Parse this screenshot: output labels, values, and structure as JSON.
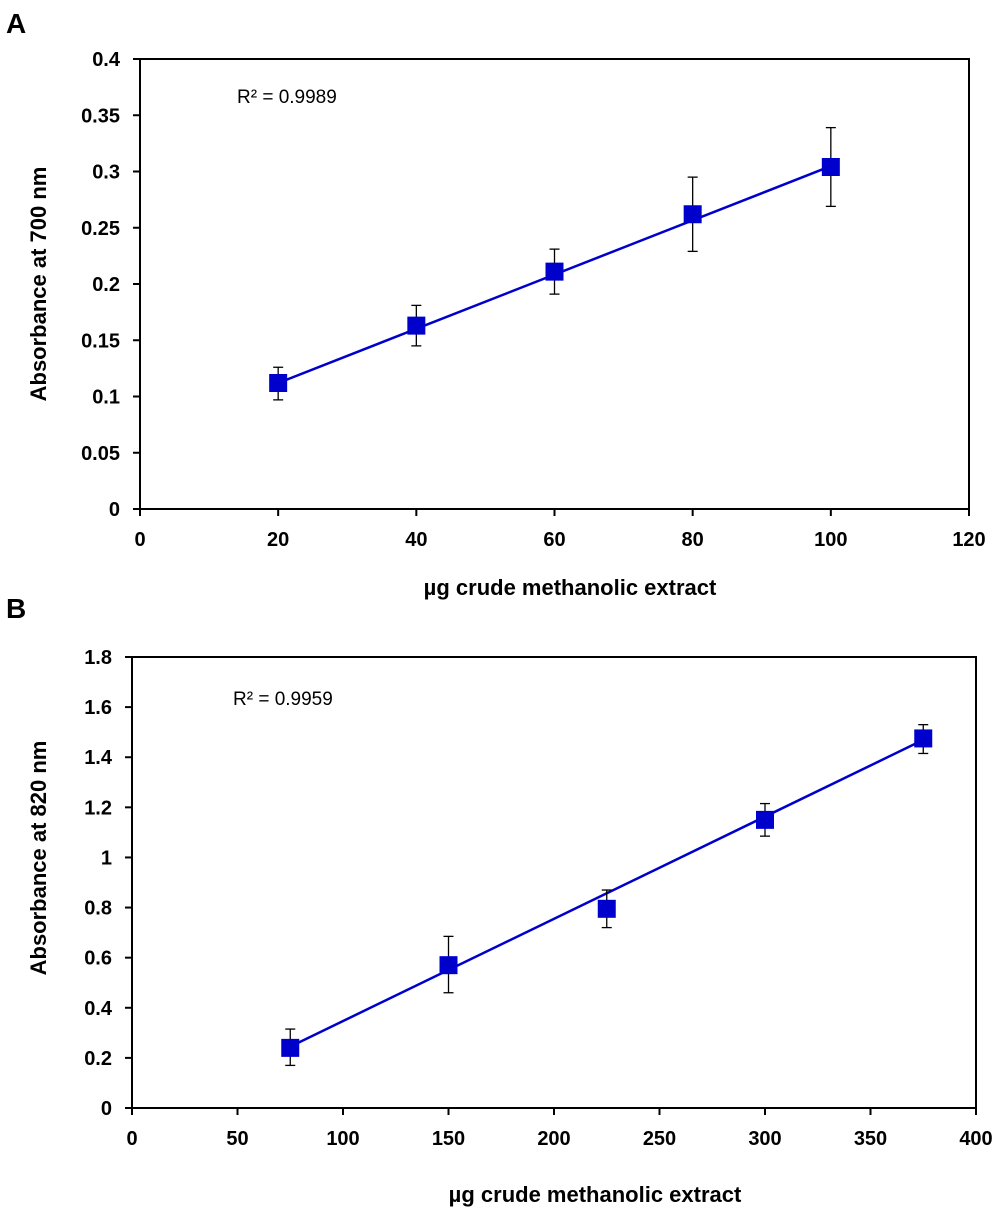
{
  "chart_data": [
    {
      "type": "scatter",
      "panel_label": "A",
      "xlabel": "µg crude methanolic extract",
      "ylabel": "Absorbance at 700 nm",
      "annotation": "R² = 0.9989",
      "xlim": [
        0,
        120
      ],
      "ylim": [
        0,
        0.4
      ],
      "x_ticks": [
        0,
        20,
        40,
        60,
        80,
        100,
        120
      ],
      "y_ticks": [
        0,
        0.05,
        0.1,
        0.15,
        0.2,
        0.25,
        0.3,
        0.35,
        0.4
      ],
      "x_tick_labels": [
        "0",
        "20",
        "40",
        "60",
        "80",
        "100",
        "120"
      ],
      "y_tick_labels": [
        "0",
        "0.05",
        "0.1",
        "0.15",
        "0.2",
        "0.25",
        "0.3",
        "0.35",
        "0.4"
      ],
      "series": [
        {
          "name": "Absorbance",
          "x": [
            20,
            40,
            60,
            80,
            100
          ],
          "y": [
            0.112,
            0.163,
            0.211,
            0.262,
            0.304
          ],
          "yerr_low": [
            0.097,
            0.145,
            0.191,
            0.229,
            0.269
          ],
          "yerr_high": [
            0.126,
            0.181,
            0.231,
            0.295,
            0.339
          ]
        }
      ],
      "trendline": {
        "slope": 0.00241,
        "intercept": 0.0638,
        "x_start": 20,
        "x_end": 100
      },
      "color": "#0000CC",
      "grid": false
    },
    {
      "type": "scatter",
      "panel_label": "B",
      "xlabel": "µg crude methanolic extract",
      "ylabel": "Absorbance at 820 nm",
      "annotation": "R² = 0.9959",
      "xlim": [
        0,
        400
      ],
      "ylim": [
        0,
        1.8
      ],
      "x_ticks": [
        0,
        50,
        100,
        150,
        200,
        250,
        300,
        350,
        400
      ],
      "y_ticks": [
        0,
        0.2,
        0.4,
        0.6,
        0.8,
        1,
        1.2,
        1.4,
        1.6,
        1.8
      ],
      "x_tick_labels": [
        "0",
        "50",
        "100",
        "150",
        "200",
        "250",
        "300",
        "350",
        "400"
      ],
      "y_tick_labels": [
        "0",
        "0.2",
        "0.4",
        "0.6",
        "0.8",
        "1",
        "1.2",
        "1.4",
        "1.6",
        "1.8"
      ],
      "series": [
        {
          "name": "Absorbance",
          "x": [
            75,
            150,
            225,
            300,
            375
          ],
          "y": [
            0.24,
            0.57,
            0.795,
            1.15,
            1.475
          ],
          "yerr_low": [
            0.17,
            0.46,
            0.72,
            1.085,
            1.415
          ],
          "yerr_high": [
            0.315,
            0.685,
            0.87,
            1.215,
            1.53
          ]
        }
      ],
      "trendline": {
        "slope": 0.00408,
        "intercept": -0.061,
        "x_start": 75,
        "x_end": 375
      },
      "color": "#0000CC",
      "grid": false
    }
  ]
}
